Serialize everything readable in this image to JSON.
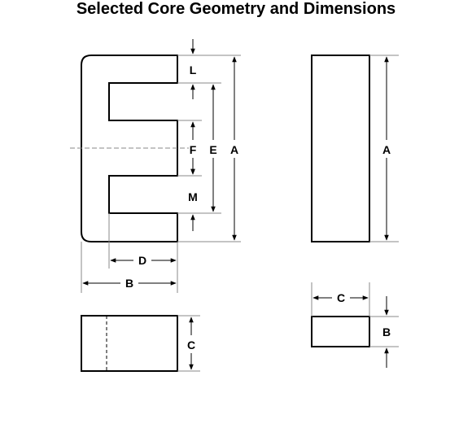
{
  "title": "Selected Core Geometry and Dimensions",
  "colors": {
    "ink": "#000000",
    "leader": "#777777",
    "background": "#ffffff"
  },
  "labels": {
    "L": "L",
    "F": "F",
    "E": "E",
    "A_front": "A",
    "M": "M",
    "D": "D",
    "B_front": "B",
    "C_side": "C",
    "A_side": "A",
    "C_top": "C",
    "B_top": "B"
  }
}
